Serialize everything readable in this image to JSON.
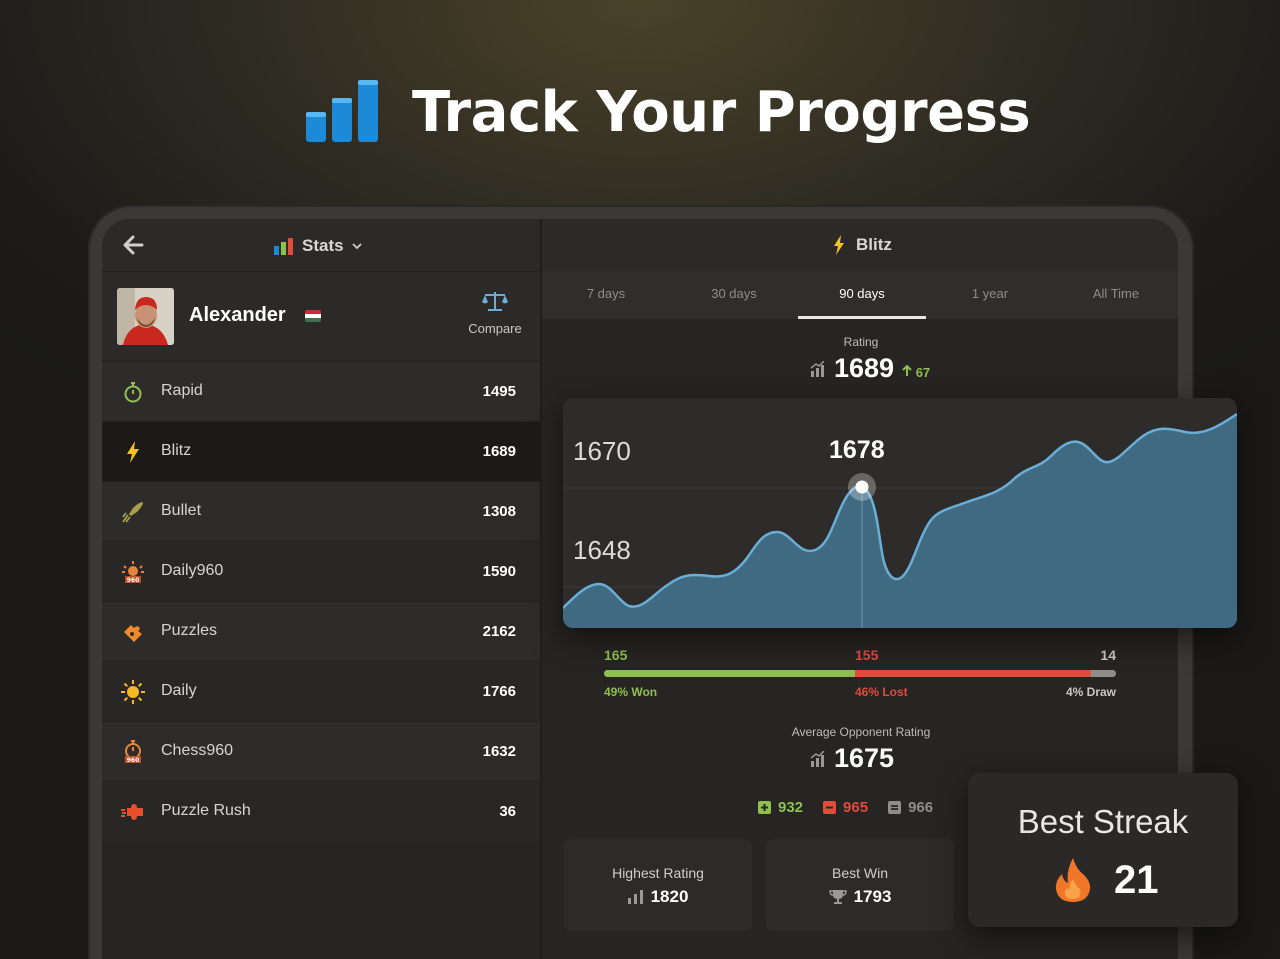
{
  "hero": {
    "title": "Track Your Progress",
    "icon": "bar-chart-icon"
  },
  "left_header": {
    "title": "Stats",
    "back_icon": "back-arrow-icon"
  },
  "profile": {
    "name": "Alexander",
    "country_flag": "hungary-flag-icon",
    "compare_label": "Compare"
  },
  "modes": [
    {
      "name": "Rapid",
      "rating": "1495",
      "icon": "stopwatch-icon",
      "color": "#8fbf4f"
    },
    {
      "name": "Blitz",
      "rating": "1689",
      "icon": "lightning-icon",
      "color": "#f6c324"
    },
    {
      "name": "Bullet",
      "rating": "1308",
      "icon": "bullet-icon",
      "color": "#a8a04c"
    },
    {
      "name": "Daily960",
      "rating": "1590",
      "icon": "sun-960-icon",
      "color": "#e8843a"
    },
    {
      "name": "Puzzles",
      "rating": "2162",
      "icon": "puzzle-icon",
      "color": "#f08a2a"
    },
    {
      "name": "Daily",
      "rating": "1766",
      "icon": "sun-icon",
      "color": "#f6b824"
    },
    {
      "name": "Chess960",
      "rating": "1632",
      "icon": "stopwatch-960-icon",
      "color": "#e8843a"
    },
    {
      "name": "Puzzle Rush",
      "rating": "36",
      "icon": "puzzle-rush-icon",
      "color": "#e84e2a"
    }
  ],
  "right_header": {
    "title": "Blitz"
  },
  "tabs": [
    "7 days",
    "30 days",
    "90 days",
    "1 year",
    "All Time"
  ],
  "active_tab": "90 days",
  "rating": {
    "label": "Rating",
    "value": "1689",
    "delta": "67"
  },
  "chart": {
    "y_labels": [
      "1670",
      "1648"
    ],
    "highlight_value": "1678",
    "line_color": "#6aaed6",
    "fill_color": "#3f6a82"
  },
  "record": {
    "won": "165",
    "lost": "155",
    "draw": "14",
    "won_pct": "49% Won",
    "lost_pct": "46% Lost",
    "draw_pct": "4% Draw",
    "won_fraction": 0.49,
    "lost_fraction": 0.46,
    "draw_fraction": 0.04,
    "won_color": "#8fbf4f",
    "lost_color": "#e04b3c",
    "draw_color": "#8e8d8a"
  },
  "avg_opponent": {
    "label": "Average Opponent Rating",
    "value": "1675"
  },
  "opponent_split": {
    "win": "932",
    "loss": "965",
    "draw": "966"
  },
  "cards": [
    {
      "title": "Highest Rating",
      "value": "1820",
      "icon": "bar-chart-small-icon"
    },
    {
      "title": "Best Win",
      "value": "1793",
      "icon": "trophy-icon"
    }
  ],
  "streak": {
    "title": "Best Streak",
    "value": "21",
    "icon": "flame-icon"
  }
}
